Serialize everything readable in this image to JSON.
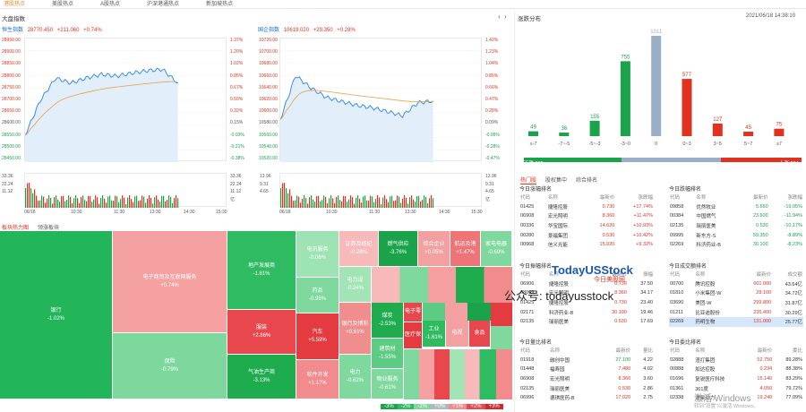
{
  "nav": {
    "tabs": [
      "港股热点",
      "美股热点",
      "A股热点",
      "沪深港通热点",
      "新加坡热点"
    ]
  },
  "market_index": {
    "title": "大盘指数"
  },
  "hsi": {
    "name": "恒生指数",
    "price": "28770.450",
    "change": "+211.060",
    "pct": "+0.74%",
    "y_left": [
      "28950.00",
      "28900.00",
      "28850.00",
      "28800.00",
      "28750.00",
      "28700.00",
      "28650.00",
      "28600.00",
      "28550.00",
      "28500.00",
      "28450.00"
    ],
    "y_right": [
      "1.37%",
      "1.20%",
      "1.02%",
      "0.85%",
      "0.67%",
      "0.50%",
      "0.32%",
      "0.15%",
      "-0.03%",
      "-0.21%",
      "-0.38%"
    ],
    "vol_left": [
      "33.36",
      "22.24",
      "11.12"
    ],
    "vol_right": [
      "33.36",
      "22.24",
      "11.12"
    ],
    "vol_unit": "亿",
    "x": [
      "06/18",
      "10:30",
      "11:30",
      "13:30",
      "14:30",
      "15:30"
    ]
  },
  "sti": {
    "name": "国企指数",
    "price": "10619.020",
    "change": "+29.350",
    "pct": "+0.28%",
    "y_left": [
      "10720.00",
      "10700.00",
      "10680.00",
      "10660.00",
      "10640.00",
      "10620.00",
      "10600.00",
      "10580.00",
      "10560.00",
      "10540.00",
      "10520.00"
    ],
    "y_right": [
      "1.42%",
      "1.23%",
      "1.04%",
      "0.85%",
      "0.66%",
      "0.47%",
      "0.28%",
      "0.09%",
      "-0.09%",
      "-0.28%",
      "-0.47%"
    ],
    "vol_left": [
      "13.96",
      "9.31",
      "4.65"
    ],
    "vol_right": [
      "13.96",
      "9.31",
      "4.65"
    ],
    "vol_unit": "亿",
    "x": [
      "06/18",
      "10:30",
      "11:30",
      "13:30",
      "14:30",
      "15:30"
    ]
  },
  "distribution": {
    "title": "涨跌分布",
    "datetime": "2021/06/18 14:38:10",
    "down_label": "下跌 995",
    "up_label": "上涨 824",
    "colors": {
      "down": "#1aa34a",
      "flat": "#9aaec6",
      "up": "#e0321f"
    }
  },
  "chart_data": [
    {
      "type": "bar",
      "title": "",
      "categories": [
        "≤-7",
        "-7~-5",
        "-5~-3",
        "-3~0",
        "0",
        "0~3",
        "3~5",
        "5~7",
        "≥7"
      ],
      "values": [
        49,
        36,
        155,
        755,
        1011,
        577,
        127,
        45,
        75
      ],
      "ylim": [
        0,
        1011
      ]
    },
    {
      "type": "line",
      "title": "恒生指数",
      "x": [
        "09:30",
        "10:00",
        "10:30",
        "11:00",
        "11:30",
        "12:00",
        "13:00",
        "13:30",
        "14:00",
        "14:30",
        "14:38"
      ],
      "y": [
        28559,
        28700,
        28790,
        28770,
        28790,
        28805,
        28798,
        28810,
        28820,
        28825,
        28770
      ],
      "ylim": [
        28450,
        28950
      ]
    },
    {
      "type": "line",
      "title": "国企指数",
      "x": [
        "09:30",
        "10:00",
        "10:30",
        "11:00",
        "11:30",
        "12:00",
        "13:00",
        "13:30",
        "14:00",
        "14:30",
        "14:38"
      ],
      "y": [
        10589,
        10660,
        10640,
        10625,
        10618,
        10612,
        10608,
        10602,
        10595,
        10616,
        10619
      ],
      "ylim": [
        10520,
        10720
      ]
    }
  ],
  "heatmap": {
    "tabs": [
      "板块热力图",
      "领涨板块"
    ],
    "tiles": [
      {
        "name": "银行",
        "pct": "-1.02%"
      },
      {
        "name": "电子商贸及互联网服务",
        "pct": "+0.74%"
      },
      {
        "name": "保险",
        "pct": "-0.79%"
      },
      {
        "name": "地产发展商",
        "pct": "-1.81%"
      },
      {
        "name": "服装",
        "pct": "+2.86%"
      },
      {
        "name": "气油生产商",
        "pct": "-3.13%"
      },
      {
        "name": "电讯服务",
        "pct": "-0.06%"
      },
      {
        "name": "药品",
        "pct": "-0.98%"
      },
      {
        "name": "汽车",
        "pct": "+5.59%"
      },
      {
        "name": "软件开发",
        "pct": "+1.17%"
      },
      {
        "name": "证券及经纪",
        "pct": "-0.28%"
      },
      {
        "name": "燃气供应",
        "pct": "-3.76%"
      },
      {
        "name": "综合企业",
        "pct": "+0.05%"
      },
      {
        "name": "航运及港",
        "pct": "+1.47%"
      },
      {
        "name": "家电电器",
        "pct": "-0.69%"
      },
      {
        "name": "电力设",
        "pct": "-0.24%"
      },
      {
        "name": "煤炭",
        "pct": "-2.53%"
      },
      {
        "name": "建筑材",
        "pct": "-1.55%"
      },
      {
        "name": "物业服务",
        "pct": "-0.61%"
      },
      {
        "name": "电力",
        "pct": "-0.62%"
      },
      {
        "name": "银行及博彩",
        "pct": "+0.61%"
      },
      {
        "name": "工业",
        "pct": "-1.61%"
      },
      {
        "name": "电子零",
        "pct": ""
      },
      {
        "name": "医疗保",
        "pct": ""
      },
      {
        "name": "电视",
        "pct": ""
      },
      {
        "name": "食品",
        "pct": ""
      }
    ],
    "legend": [
      "-3%",
      "-2%",
      "-1%",
      "+0%",
      "+1%",
      "+2%",
      "+3%"
    ]
  },
  "stocks": {
    "tabs": [
      "热门股",
      "股权集中",
      "综合排名"
    ],
    "cols": [
      "代码",
      "名称",
      "最新价",
      "涨跌幅"
    ],
    "top_gainers": {
      "title": "今日涨幅排名",
      "rows": [
        [
          "01425",
          "捷隆控股",
          "0.730",
          "+17.74%"
        ],
        [
          "06908",
          "宏光照明",
          "8.360",
          "+11.47%"
        ],
        [
          "00336",
          "华宝国际",
          "14.620",
          "+10.93%"
        ],
        [
          "00280",
          "景福集团",
          "0.530",
          "+10.42%"
        ],
        [
          "00968",
          "信义光能",
          "15.020",
          "+9.32%"
        ]
      ]
    },
    "top_losers": {
      "title": "今日跌幅排名",
      "rows": [
        [
          "09858",
          "优然牧业",
          "5.650",
          "-19.05%"
        ],
        [
          "00384",
          "中国燃气",
          "23.600",
          "-11.94%"
        ],
        [
          "02135",
          "瑞丽医美",
          "0.530",
          "-10.17%"
        ],
        [
          "09995",
          "新东方-S",
          "59.350",
          "-8.89%"
        ],
        [
          "02269",
          "科济药业-B",
          "30.100",
          "-8.23%"
        ]
      ]
    },
    "top_amplitude": {
      "title": "今日振幅排名",
      "cols": [
        "代码",
        "名称",
        "最新价",
        "振幅"
      ],
      "rows": [
        [
          "06906",
          "捷隆控股",
          "0.730",
          "37.50"
        ],
        [
          "08069",
          "宏光照明",
          "8.360",
          "34.17"
        ],
        [
          "01425",
          "捷隆控股",
          "0.730",
          "23.40"
        ],
        [
          "02171",
          "科济药业-B",
          "30.100",
          "19.46"
        ],
        [
          "02135",
          "瑞丽医美",
          "0.530",
          "17.69"
        ]
      ]
    },
    "top_turnover": {
      "title": "今日成交额排名",
      "cols": [
        "代码",
        "名称",
        "最新价",
        "成交额"
      ],
      "rows": [
        [
          "00700",
          "腾讯控股",
          "601.000",
          "43.64亿"
        ],
        [
          "01810",
          "小米集团-W",
          "28.100",
          "34.72亿"
        ],
        [
          "03690",
          "美团-W",
          "299.800",
          "31.87亿"
        ],
        [
          "01211",
          "比亚迪股份",
          "235.400",
          "30.29亿"
        ],
        [
          "02269",
          "药明生物",
          "131.000",
          "25.77亿"
        ]
      ]
    },
    "top_volume_ratio": {
      "title": "今日量比排名",
      "cols": [
        "代码",
        "名称",
        "最新价",
        "量比"
      ],
      "rows": [
        [
          "01918",
          "融创中国",
          "27.100",
          "4.22"
        ],
        [
          "01448",
          "福寿园",
          "7.480",
          "4.02"
        ],
        [
          "06908",
          "宏光照明",
          "8.360",
          "3.60"
        ],
        [
          "02135",
          "瑞丽医美",
          "0.530",
          "2.86"
        ],
        [
          "06996",
          "德琪医药-B",
          "17.020",
          "2.75"
        ]
      ]
    },
    "top_commission": {
      "title": "今日委比排名",
      "cols": [
        "代码",
        "名称",
        "最新价",
        "委比"
      ],
      "rows": [
        [
          "02888",
          "渣打集团",
          "52.750",
          "89.28%"
        ],
        [
          "00888",
          "加达控股",
          "0.234",
          "88.38%"
        ],
        [
          "01696",
          "复锐医疗科技",
          "15.140",
          "83.29%"
        ],
        [
          "01361",
          "361度",
          "4.050",
          "79.72%"
        ],
        [
          "02338",
          "潍柴动力",
          "19.240",
          "77.09%"
        ]
      ]
    }
  },
  "watermark": {
    "brand": "TodayUSStock",
    "brand_cn": "今日美股网",
    "wechat": "公众号: todayusstock",
    "activate": "激活 Windows",
    "activate_sub": "转到\"设置\"以激活 Windows。"
  }
}
